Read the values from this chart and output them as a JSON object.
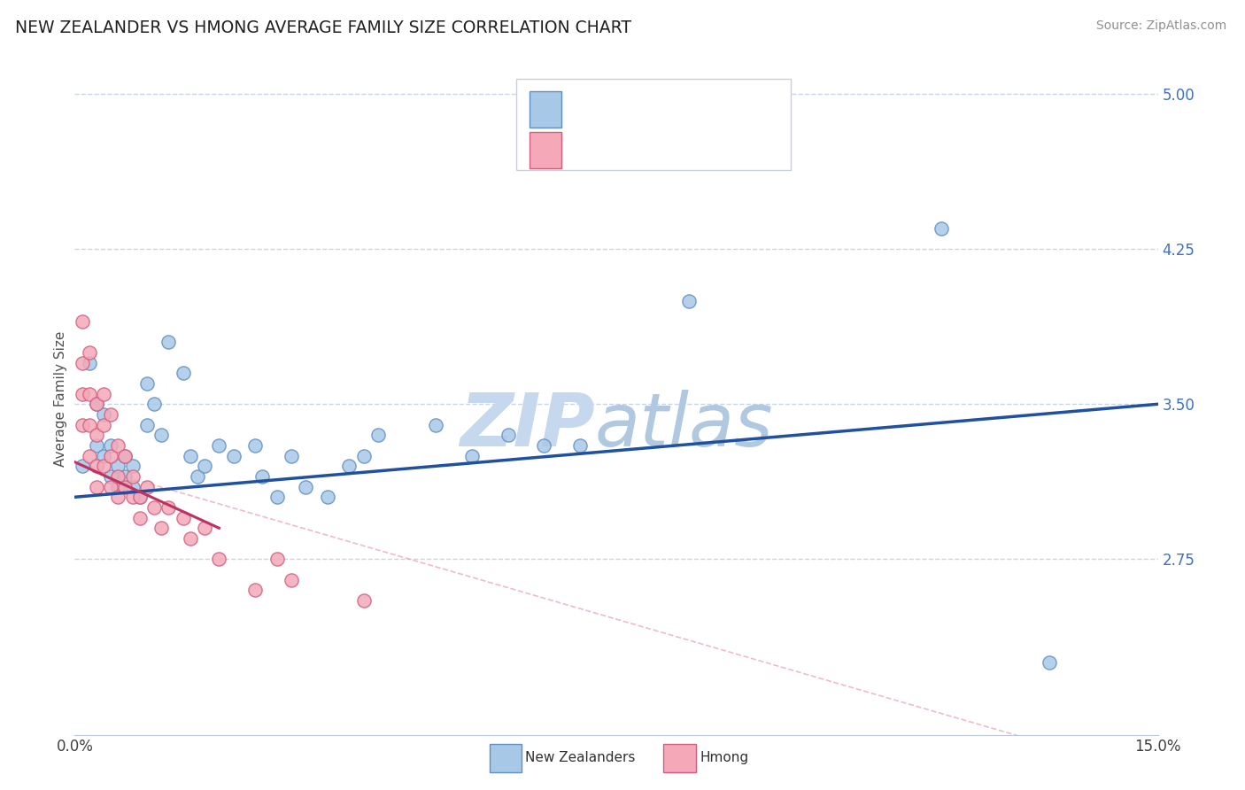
{
  "title": "NEW ZEALANDER VS HMONG AVERAGE FAMILY SIZE CORRELATION CHART",
  "source": "Source: ZipAtlas.com",
  "ylabel": "Average Family Size",
  "xmin": 0.0,
  "xmax": 0.15,
  "ymin": 1.9,
  "ymax": 5.15,
  "yticks_right": [
    5.0,
    4.25,
    3.5,
    2.75
  ],
  "nz_color": "#a8c8e8",
  "nz_edge_color": "#6090c0",
  "hmong_color": "#f4a8b8",
  "hmong_edge_color": "#d06080",
  "nz_line_color": "#2050a0",
  "hmong_line_color": "#c03060",
  "hmong_dash_color": "#e090a8",
  "background_color": "#ffffff",
  "grid_color": "#c8d4e8",
  "nz_x": [
    0.001,
    0.002,
    0.003,
    0.003,
    0.004,
    0.004,
    0.005,
    0.005,
    0.006,
    0.006,
    0.007,
    0.007,
    0.008,
    0.008,
    0.009,
    0.01,
    0.01,
    0.011,
    0.012,
    0.013,
    0.015,
    0.016,
    0.017,
    0.018,
    0.02,
    0.022,
    0.025,
    0.026,
    0.028,
    0.03,
    0.032,
    0.035,
    0.038,
    0.04,
    0.042,
    0.05,
    0.055,
    0.06,
    0.065,
    0.07,
    0.085,
    0.12,
    0.135
  ],
  "nz_y": [
    3.2,
    3.7,
    3.3,
    3.5,
    3.25,
    3.45,
    3.15,
    3.3,
    3.1,
    3.2,
    3.15,
    3.25,
    3.1,
    3.2,
    3.05,
    3.4,
    3.6,
    3.5,
    3.35,
    3.8,
    3.65,
    3.25,
    3.15,
    3.2,
    3.3,
    3.25,
    3.3,
    3.15,
    3.05,
    3.25,
    3.1,
    3.05,
    3.2,
    3.25,
    3.35,
    3.4,
    3.25,
    3.35,
    3.3,
    3.3,
    4.0,
    4.35,
    2.25
  ],
  "hmong_x": [
    0.001,
    0.001,
    0.001,
    0.001,
    0.002,
    0.002,
    0.002,
    0.002,
    0.003,
    0.003,
    0.003,
    0.003,
    0.004,
    0.004,
    0.004,
    0.005,
    0.005,
    0.005,
    0.006,
    0.006,
    0.006,
    0.007,
    0.007,
    0.008,
    0.008,
    0.009,
    0.009,
    0.01,
    0.011,
    0.012,
    0.013,
    0.015,
    0.016,
    0.018,
    0.02,
    0.025,
    0.028,
    0.03,
    0.04
  ],
  "hmong_y": [
    3.9,
    3.7,
    3.55,
    3.4,
    3.75,
    3.55,
    3.4,
    3.25,
    3.5,
    3.35,
    3.2,
    3.1,
    3.4,
    3.2,
    3.55,
    3.25,
    3.1,
    3.45,
    3.3,
    3.15,
    3.05,
    3.25,
    3.1,
    3.05,
    3.15,
    2.95,
    3.05,
    3.1,
    3.0,
    2.9,
    3.0,
    2.95,
    2.85,
    2.9,
    2.75,
    2.6,
    2.75,
    2.65,
    2.55
  ],
  "nz_line_x": [
    0.0,
    0.15
  ],
  "nz_line_y": [
    3.05,
    3.5
  ],
  "hmong_line_x": [
    0.0,
    0.02
  ],
  "hmong_line_y": [
    3.22,
    2.9
  ],
  "hmong_dashline_x": [
    0.0,
    0.14
  ],
  "hmong_dashline_y": [
    3.22,
    1.8
  ]
}
